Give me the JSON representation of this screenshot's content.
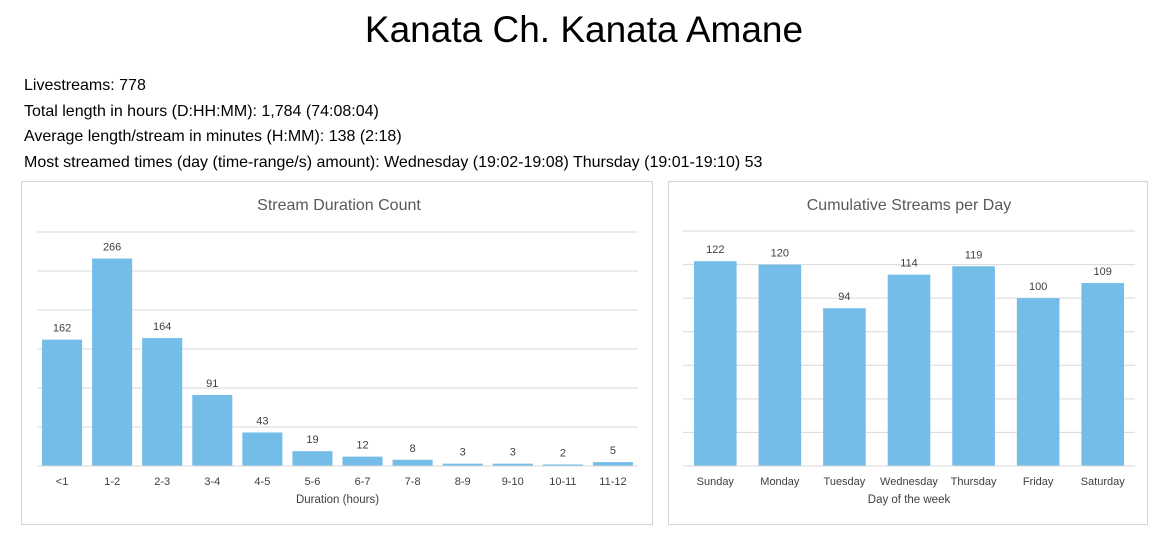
{
  "page": {
    "title": "Kanata Ch. Kanata Amane"
  },
  "stats": {
    "line1": "Livestreams: 778",
    "line2": "Total length in hours (D:HH:MM): 1,784 (74:08:04)",
    "line3": "Average length/stream in minutes (H:MM): 138 (2:18)",
    "line4": "Most streamed times (day (time-range/s) amount): Wednesday (19:02-19:08) Thursday (19:01-19:10) 53"
  },
  "colors": {
    "bar": "#74bde9",
    "grid": "#d9d9d9"
  },
  "chart_data": [
    {
      "type": "bar",
      "title": "Stream Duration Count",
      "xlabel": "Duration (hours)",
      "ylabel": "",
      "categories": [
        "<1",
        "1-2",
        "2-3",
        "3-4",
        "4-5",
        "5-6",
        "6-7",
        "7-8",
        "8-9",
        "9-10",
        "10-11",
        "11-12"
      ],
      "values": [
        162,
        266,
        164,
        91,
        43,
        19,
        12,
        8,
        3,
        3,
        2,
        5
      ],
      "ylim": [
        0,
        300
      ],
      "grid": true,
      "legend": "none",
      "data_labels": true
    },
    {
      "type": "bar",
      "title": "Cumulative Streams per Day",
      "xlabel": "Day of the week",
      "ylabel": "",
      "categories": [
        "Sunday",
        "Monday",
        "Tuesday",
        "Wednesday",
        "Thursday",
        "Friday",
        "Saturday"
      ],
      "values": [
        122,
        120,
        94,
        114,
        119,
        100,
        109
      ],
      "ylim": [
        0,
        140
      ],
      "grid": true,
      "legend": "none",
      "data_labels": true
    }
  ]
}
